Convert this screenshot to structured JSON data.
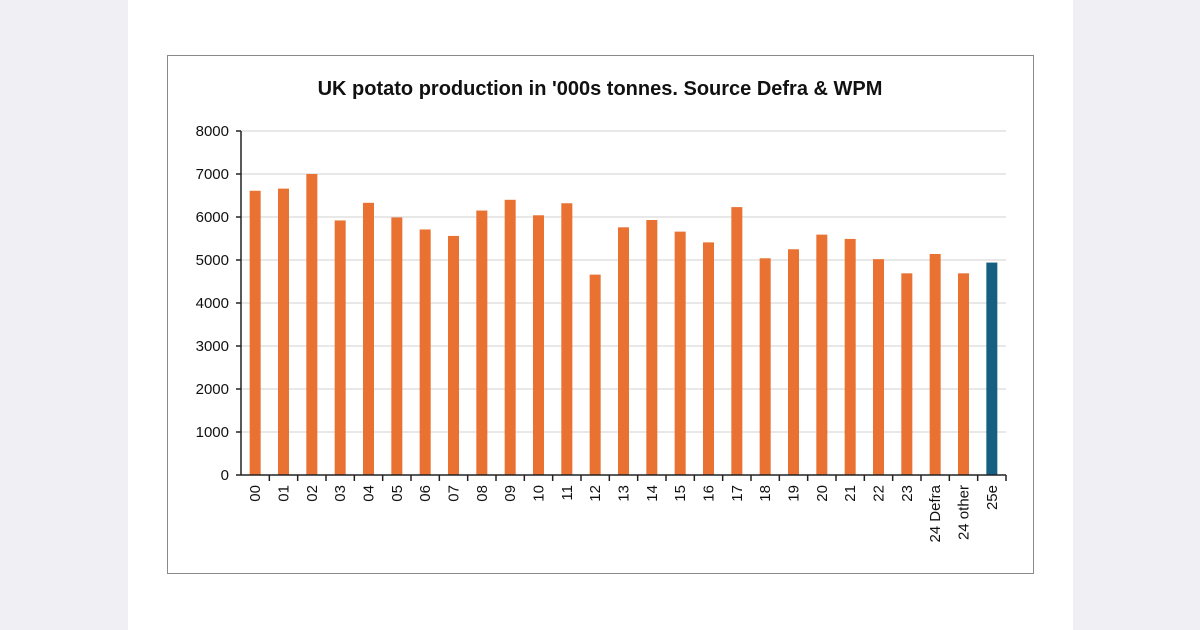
{
  "chart_data": {
    "type": "bar",
    "title": "UK potato production in '000s tonnes. Source Defra & WPM",
    "xlabel": "",
    "ylabel": "",
    "ylim": [
      0,
      8000
    ],
    "yticks": [
      "0",
      "1000",
      "2000",
      "3000",
      "4000",
      "5000",
      "6000",
      "7000",
      "8000"
    ],
    "grid": true,
    "categories": [
      "00",
      "01",
      "02",
      "03",
      "04",
      "05",
      "06",
      "07",
      "08",
      "09",
      "10",
      "11",
      "12",
      "13",
      "14",
      "15",
      "16",
      "17",
      "18",
      "19",
      "20",
      "21",
      "22",
      "23",
      "24 Defra",
      "24 other",
      "25e"
    ],
    "values": [
      6610,
      6660,
      7000,
      5920,
      6330,
      5990,
      5710,
      5560,
      6150,
      6400,
      6040,
      6320,
      4660,
      5760,
      5930,
      5660,
      5410,
      6230,
      5040,
      5250,
      5590,
      5490,
      5020,
      4690,
      5140,
      4690,
      4940
    ],
    "colors": {
      "default": "#E97132",
      "estimate": "#156082"
    },
    "highlighted_category": "25e"
  }
}
